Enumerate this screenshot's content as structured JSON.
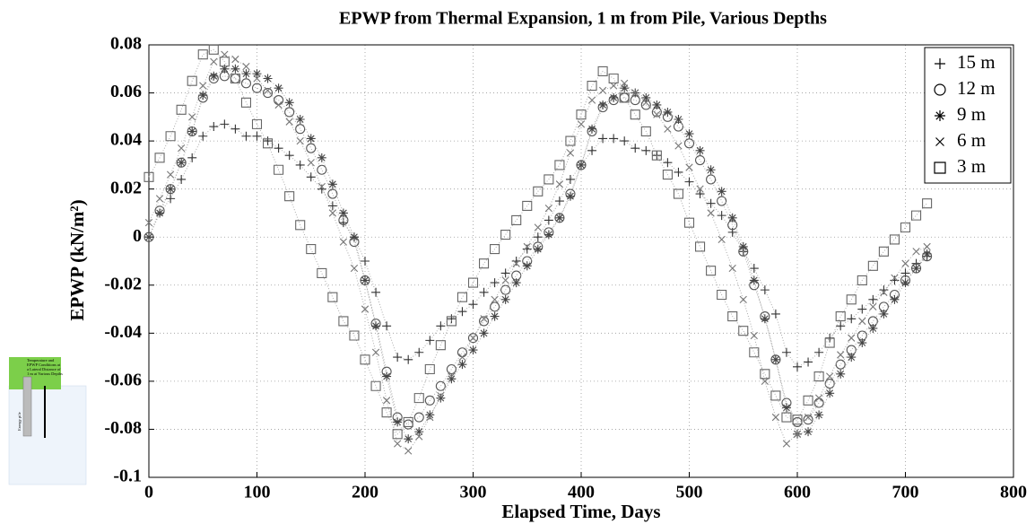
{
  "chart_data": {
    "type": "scatter",
    "title": "EPWP from Thermal Expansion, 1 m from Pile, Various Depths",
    "x_label": "Elapsed Time, Days",
    "y_label": "EPWP (kN/m²)",
    "xlim": [
      0,
      800
    ],
    "xticks": [
      0,
      100,
      200,
      300,
      400,
      500,
      600,
      700,
      800
    ],
    "ylim": [
      -0.1,
      0.08
    ],
    "yticks": [
      -0.1,
      -0.08,
      -0.06,
      -0.04,
      -0.02,
      0,
      0.02,
      0.04,
      0.06,
      0.08
    ],
    "grid": true,
    "legend": "upper right",
    "x": [
      0,
      10,
      20,
      30,
      40,
      50,
      60,
      70,
      80,
      90,
      100,
      110,
      120,
      130,
      140,
      150,
      160,
      170,
      180,
      190,
      200,
      210,
      220,
      230,
      240,
      250,
      260,
      270,
      280,
      290,
      300,
      310,
      320,
      330,
      340,
      350,
      360,
      370,
      380,
      390,
      400,
      410,
      420,
      430,
      440,
      450,
      460,
      470,
      480,
      490,
      500,
      510,
      520,
      530,
      540,
      550,
      560,
      570,
      580,
      590,
      600,
      610,
      620,
      630,
      640,
      650,
      660,
      670,
      680,
      690,
      700,
      710,
      720
    ],
    "series": [
      {
        "name": "15 m",
        "marker": "plus",
        "color": "#333333",
        "values": [
          0,
          0.01,
          0.016,
          0.024,
          0.033,
          0.042,
          0.046,
          0.047,
          0.045,
          0.042,
          0.042,
          0.04,
          0.037,
          0.034,
          0.03,
          0.025,
          0.02,
          0.013,
          0.006,
          0,
          -0.01,
          -0.023,
          -0.037,
          -0.05,
          -0.051,
          -0.048,
          -0.043,
          -0.037,
          -0.034,
          -0.031,
          -0.028,
          -0.023,
          -0.019,
          -0.015,
          -0.01,
          -0.005,
          0,
          0.007,
          0.015,
          0.024,
          0.03,
          0.036,
          0.041,
          0.041,
          0.04,
          0.037,
          0.036,
          0.034,
          0.031,
          0.027,
          0.023,
          0.018,
          0.014,
          0.009,
          0.002,
          -0.006,
          -0.013,
          -0.022,
          -0.032,
          -0.048,
          -0.054,
          -0.052,
          -0.048,
          -0.042,
          -0.037,
          -0.034,
          -0.03,
          -0.026,
          -0.022,
          -0.018,
          -0.015,
          -0.011,
          -0.008
        ]
      },
      {
        "name": "12 m",
        "marker": "circle",
        "color": "#555555",
        "values": [
          0,
          0.011,
          0.02,
          0.031,
          0.044,
          0.058,
          0.066,
          0.067,
          0.066,
          0.064,
          0.062,
          0.06,
          0.057,
          0.052,
          0.045,
          0.037,
          0.028,
          0.018,
          0.007,
          -0.002,
          -0.018,
          -0.036,
          -0.056,
          -0.075,
          -0.078,
          -0.075,
          -0.068,
          -0.062,
          -0.055,
          -0.048,
          -0.042,
          -0.035,
          -0.029,
          -0.022,
          -0.016,
          -0.01,
          -0.004,
          0.002,
          0.008,
          0.018,
          0.03,
          0.044,
          0.054,
          0.057,
          0.058,
          0.057,
          0.055,
          0.052,
          0.05,
          0.046,
          0.039,
          0.032,
          0.024,
          0.015,
          0.005,
          -0.006,
          -0.02,
          -0.033,
          -0.051,
          -0.069,
          -0.077,
          -0.076,
          -0.069,
          -0.061,
          -0.053,
          -0.047,
          -0.041,
          -0.035,
          -0.029,
          -0.024,
          -0.018,
          -0.013,
          -0.008
        ]
      },
      {
        "name": "9 m",
        "marker": "asterisk",
        "color": "#444444",
        "values": [
          0,
          0.01,
          0.02,
          0.031,
          0.044,
          0.059,
          0.067,
          0.07,
          0.07,
          0.068,
          0.068,
          0.066,
          0.062,
          0.056,
          0.049,
          0.041,
          0.033,
          0.022,
          0.01,
          0,
          -0.018,
          -0.037,
          -0.058,
          -0.077,
          -0.084,
          -0.081,
          -0.074,
          -0.067,
          -0.059,
          -0.053,
          -0.047,
          -0.04,
          -0.033,
          -0.026,
          -0.019,
          -0.012,
          -0.005,
          0.001,
          0.008,
          0.017,
          0.03,
          0.045,
          0.055,
          0.058,
          0.062,
          0.06,
          0.058,
          0.055,
          0.052,
          0.049,
          0.043,
          0.036,
          0.028,
          0.019,
          0.008,
          -0.004,
          -0.018,
          -0.034,
          -0.051,
          -0.071,
          -0.082,
          -0.081,
          -0.074,
          -0.065,
          -0.057,
          -0.05,
          -0.044,
          -0.038,
          -0.032,
          -0.026,
          -0.019,
          -0.013,
          -0.007
        ]
      },
      {
        "name": "6 m",
        "marker": "cross",
        "color": "#777777",
        "values": [
          0.006,
          0.016,
          0.026,
          0.037,
          0.05,
          0.063,
          0.073,
          0.076,
          0.074,
          0.071,
          0.066,
          0.061,
          0.055,
          0.048,
          0.04,
          0.031,
          0.021,
          0.01,
          -0.002,
          -0.013,
          -0.03,
          -0.048,
          -0.068,
          -0.086,
          -0.089,
          -0.083,
          -0.075,
          -0.066,
          -0.058,
          -0.05,
          -0.042,
          -0.034,
          -0.026,
          -0.018,
          -0.011,
          -0.004,
          0.004,
          0.012,
          0.022,
          0.035,
          0.047,
          0.057,
          0.061,
          0.063,
          0.064,
          0.06,
          0.056,
          0.051,
          0.045,
          0.038,
          0.029,
          0.02,
          0.01,
          -0.001,
          -0.013,
          -0.026,
          -0.041,
          -0.06,
          -0.075,
          -0.086,
          -0.082,
          -0.075,
          -0.067,
          -0.058,
          -0.049,
          -0.042,
          -0.035,
          -0.029,
          -0.023,
          -0.017,
          -0.011,
          -0.006,
          -0.004
        ]
      },
      {
        "name": "3 m",
        "marker": "square",
        "color": "#666666",
        "values": [
          0.025,
          0.033,
          0.042,
          0.053,
          0.065,
          0.076,
          0.078,
          0.073,
          0.066,
          0.056,
          0.047,
          0.039,
          0.028,
          0.017,
          0.005,
          -0.005,
          -0.015,
          -0.025,
          -0.035,
          -0.041,
          -0.051,
          -0.062,
          -0.073,
          -0.082,
          -0.077,
          -0.067,
          -0.055,
          -0.045,
          -0.035,
          -0.025,
          -0.019,
          -0.011,
          -0.005,
          0.001,
          0.007,
          0.013,
          0.019,
          0.024,
          0.03,
          0.04,
          0.051,
          0.063,
          0.069,
          0.066,
          0.058,
          0.051,
          0.044,
          0.034,
          0.026,
          0.018,
          0.006,
          -0.004,
          -0.014,
          -0.024,
          -0.033,
          -0.039,
          -0.048,
          -0.057,
          -0.066,
          -0.075,
          -0.076,
          -0.068,
          -0.058,
          -0.044,
          -0.033,
          -0.026,
          -0.018,
          -0.012,
          -0.006,
          -0.001,
          0.004,
          0.009,
          0.014
        ]
      }
    ]
  },
  "inset": {
    "caption": "Temperature and EPWP Conditions at a Lateral Distance of 1 m at Various Depths",
    "pile_label": "Energy pile"
  }
}
